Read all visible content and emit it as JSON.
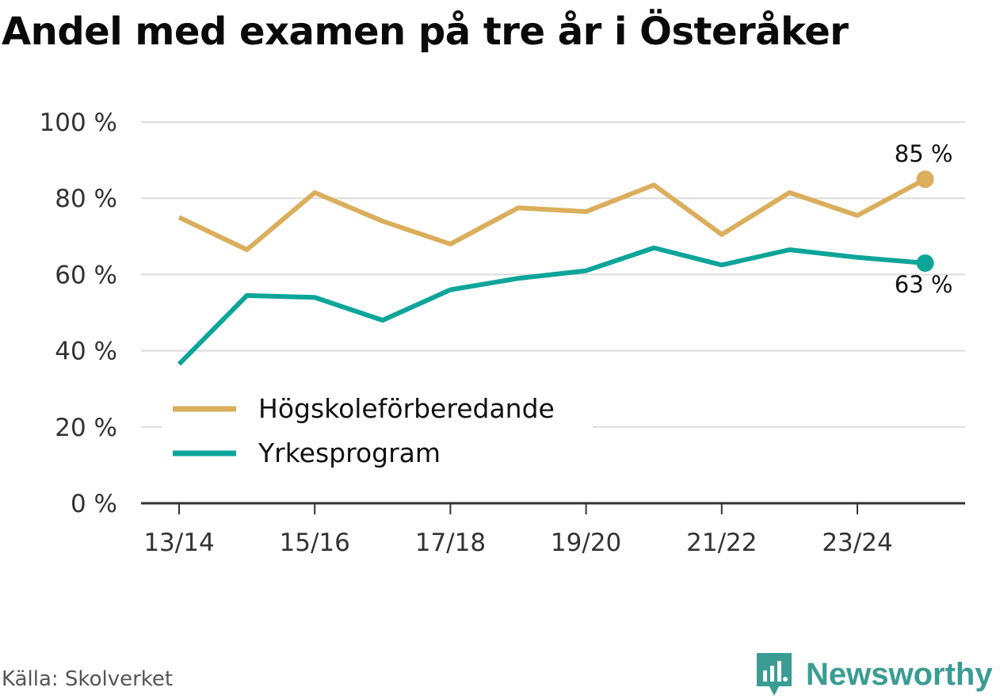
{
  "title": "Andel med examen på tre år i Österåker",
  "source": "Källa: Skolverket",
  "brand": {
    "name": "Newsworthy",
    "icon": "newsworthy-logo-icon",
    "color": "#3a9c93"
  },
  "chart_data": {
    "type": "line",
    "title": "Andel med examen på tre år i Österåker",
    "xlabel": "",
    "ylabel": "",
    "categories": [
      "13/14",
      "14/15",
      "15/16",
      "16/17",
      "17/18",
      "18/19",
      "19/20",
      "20/21",
      "21/22",
      "22/23",
      "23/24",
      "24/25"
    ],
    "x_tick_labels": [
      "13/14",
      "15/16",
      "17/18",
      "19/20",
      "21/22",
      "23/24"
    ],
    "ylim": [
      0,
      100
    ],
    "y_ticks": [
      0,
      20,
      40,
      60,
      80,
      100
    ],
    "y_tick_labels": [
      "0 %",
      "20 %",
      "40 %",
      "60 %",
      "80 %",
      "100 %"
    ],
    "grid": true,
    "legend_position": "bottom-left",
    "series": [
      {
        "name": "Högskoleförberedande",
        "color": "#dbae5c",
        "values": [
          75,
          66.5,
          81.5,
          74,
          68,
          77.5,
          76.5,
          83.5,
          70.5,
          81.5,
          75.5,
          85
        ],
        "end_label": "85 %"
      },
      {
        "name": "Yrkesprogram",
        "color": "#0da59a",
        "values": [
          36.5,
          54.5,
          54,
          48,
          56,
          59,
          61,
          67,
          62.5,
          66.5,
          64.5,
          63
        ],
        "end_label": "63 %"
      }
    ]
  }
}
